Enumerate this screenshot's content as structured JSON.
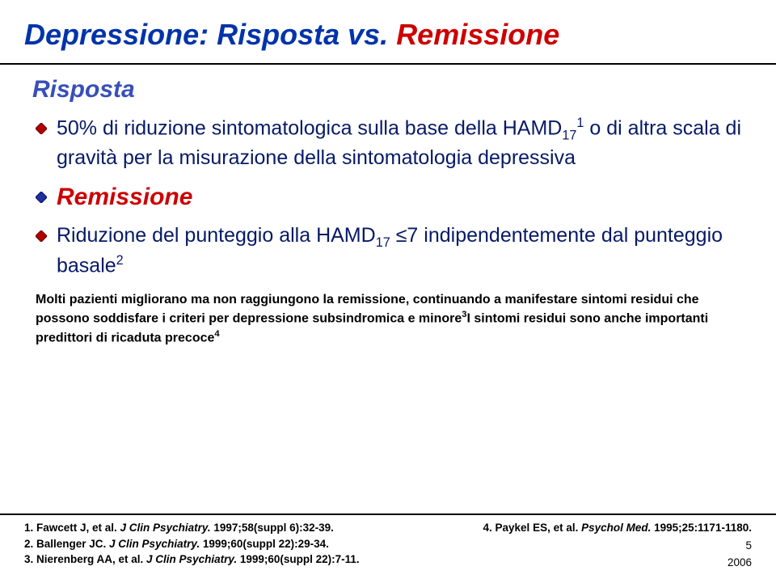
{
  "title": {
    "part1": "Depressione: Risposta",
    "vs": " vs. ",
    "part2": "Remissione"
  },
  "risposta": {
    "heading": "Risposta",
    "bullet_html": "50% di riduzione sintomatologica sulla base della HAMD<sub>17</sub><sup>1</sup> o di altra scala di gravità per la misurazione della sintomatologia depressiva"
  },
  "remissione": {
    "heading": "Remissione",
    "bullet_html": "Riduzione del punteggio alla HAMD<sub>17</sub> ≤7 indipendentemente dal punteggio basale<sup>2</sup>"
  },
  "note_html": "Molti pazienti migliorano ma non raggiungono la remissione, continuando a manifestare sintomi residui che possono soddisfare i criteri per depressione subsindromica e minore<sup>3</sup>I sintomi residui sono anche importanti predittori di ricaduta precoce<sup>4</sup>",
  "refs_left": [
    {
      "n": "1.",
      "auth": "Fawcett J, et al.",
      "src": "J Clin Psychiatry.",
      "rest": "1997;58(suppl 6):32-39."
    },
    {
      "n": "2.",
      "auth": "Ballenger JC.",
      "src": "J Clin Psychiatry.",
      "rest": "1999;60(suppl 22):29-34."
    },
    {
      "n": "3.",
      "auth": "Nierenberg AA, et al.",
      "src": "J Clin Psychiatry.",
      "rest": "1999;60(suppl 22):7-11."
    }
  ],
  "refs_right": [
    {
      "n": "4.",
      "auth": "Paykel ES, et al.",
      "src": "Psychol Med.",
      "rest": "1995;25:1171-1180."
    }
  ],
  "page": "5",
  "year": "2006",
  "colors": {
    "title_blue": "#0033aa",
    "title_red": "#cc0000",
    "body_text": "#061a66",
    "heading_blue": "#384fb8",
    "heading_red": "#cc0000",
    "diamond_red": "#b00000",
    "diamond_blue": "#2030a0"
  }
}
